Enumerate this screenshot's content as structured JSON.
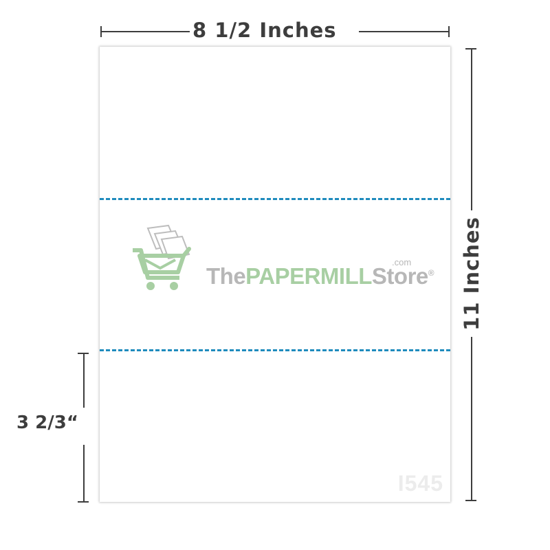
{
  "dimensions": {
    "width_label": "8 1/2 Inches",
    "height_label": "11 Inches",
    "section_label": "3 2/3“"
  },
  "logo": {
    "prefix": "The",
    "paper": "PAPER",
    "mill": "MILL",
    "store": "Store",
    "registered": "®",
    "com": ".com",
    "icon": "shopping-cart-with-paper-icon"
  },
  "product_code": "I545",
  "colors": {
    "perforation": "#1f8bbd",
    "dimension_text": "#3d3d3d",
    "logo_green": "#a8cfa3",
    "logo_gray": "#b7b7b7"
  }
}
